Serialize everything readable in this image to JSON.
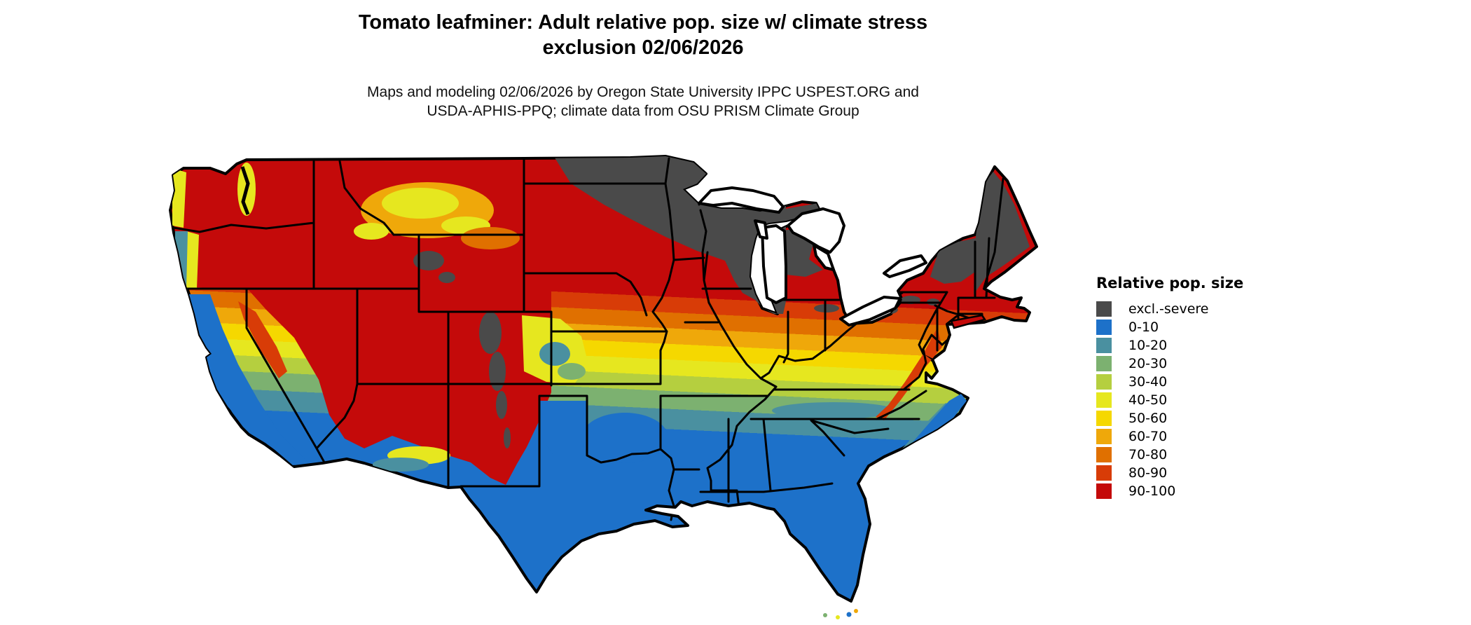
{
  "title": {
    "line1": "Tomato leafminer: Adult relative pop. size w/ climate stress",
    "line2": "exclusion 02/06/2026"
  },
  "subtitle": {
    "line1": "Maps and modeling 02/06/2026 by Oregon State University IPPC USPEST.ORG and",
    "line2": "USDA-APHIS-PPQ; climate data from OSU PRISM Climate Group"
  },
  "legend": {
    "title": "Relative pop. size",
    "items": [
      {
        "key": "excl",
        "label": "excl.-severe",
        "color": "#4a4a4a"
      },
      {
        "key": "b0",
        "label": "0-10",
        "color": "#1d71c9"
      },
      {
        "key": "b10",
        "label": "10-20",
        "color": "#4a90a0"
      },
      {
        "key": "b20",
        "label": "20-30",
        "color": "#7cb170"
      },
      {
        "key": "b30",
        "label": "30-40",
        "color": "#b5cf3f"
      },
      {
        "key": "b40",
        "label": "40-50",
        "color": "#e6e71f"
      },
      {
        "key": "b50",
        "label": "50-60",
        "color": "#f5d800"
      },
      {
        "key": "b60",
        "label": "60-70",
        "color": "#efa80a"
      },
      {
        "key": "b70",
        "label": "70-80",
        "color": "#e07000"
      },
      {
        "key": "b80",
        "label": "80-90",
        "color": "#d83c07"
      },
      {
        "key": "b90",
        "label": "90-100",
        "color": "#c40a0a"
      }
    ]
  },
  "map": {
    "region": "Continental United States",
    "water_color": "#ffffff",
    "border_color": "#000000"
  }
}
